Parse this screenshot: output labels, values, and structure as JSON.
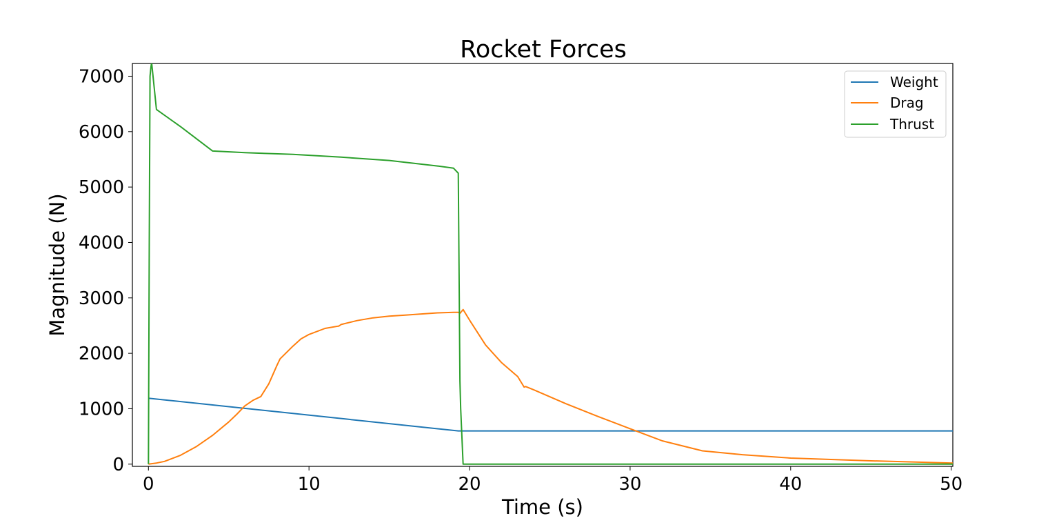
{
  "chart_data": {
    "type": "line",
    "title": "Rocket Forces",
    "xlabel": "Time (s)",
    "ylabel": "Magnitude (N)",
    "xlim": [
      -1,
      50.1
    ],
    "ylim": [
      -40,
      7230
    ],
    "xticks": [
      0,
      10,
      20,
      30,
      40,
      50
    ],
    "yticks": [
      0,
      1000,
      2000,
      3000,
      4000,
      5000,
      6000,
      7000
    ],
    "grid": false,
    "legend_position": "top-right",
    "series": [
      {
        "name": "Weight",
        "color": "#1f77b4",
        "x": [
          0,
          19.3,
          50.1
        ],
        "y": [
          1190,
          600,
          600
        ]
      },
      {
        "name": "Drag",
        "color": "#ff7f0e",
        "x": [
          0,
          0.5,
          1,
          2,
          3,
          4,
          5,
          5.5,
          6,
          6.5,
          7,
          7.5,
          8,
          8.2,
          9,
          9.5,
          10,
          11,
          11.8,
          11.85,
          12,
          13,
          14,
          15,
          16,
          17,
          18,
          19,
          19.3,
          19.4,
          19.6,
          20,
          21,
          22,
          23,
          23.4,
          23.5,
          24,
          26,
          28,
          30,
          32,
          34.5,
          37,
          40,
          45,
          50.1
        ],
        "y": [
          0,
          20,
          50,
          160,
          320,
          520,
          760,
          900,
          1050,
          1150,
          1220,
          1450,
          1780,
          1900,
          2130,
          2260,
          2340,
          2450,
          2490,
          2490,
          2520,
          2590,
          2640,
          2670,
          2690,
          2710,
          2730,
          2740,
          2740,
          2720,
          2790,
          2600,
          2150,
          1830,
          1580,
          1390,
          1400,
          1340,
          1090,
          860,
          640,
          420,
          240,
          170,
          110,
          60,
          20
        ]
      },
      {
        "name": "Thrust",
        "color": "#2ca02c",
        "x": [
          0,
          0.05,
          0.1,
          0.15,
          0.2,
          0.5,
          2,
          4,
          6,
          9,
          12,
          15,
          18,
          19,
          19.3,
          19.4,
          19.45,
          19.6,
          25,
          35,
          50.1
        ],
        "y": [
          0,
          4000,
          7000,
          7150,
          7250,
          6400,
          6090,
          5650,
          5620,
          5590,
          5540,
          5480,
          5380,
          5340,
          5250,
          1500,
          1000,
          0,
          0,
          0,
          0
        ]
      }
    ]
  }
}
